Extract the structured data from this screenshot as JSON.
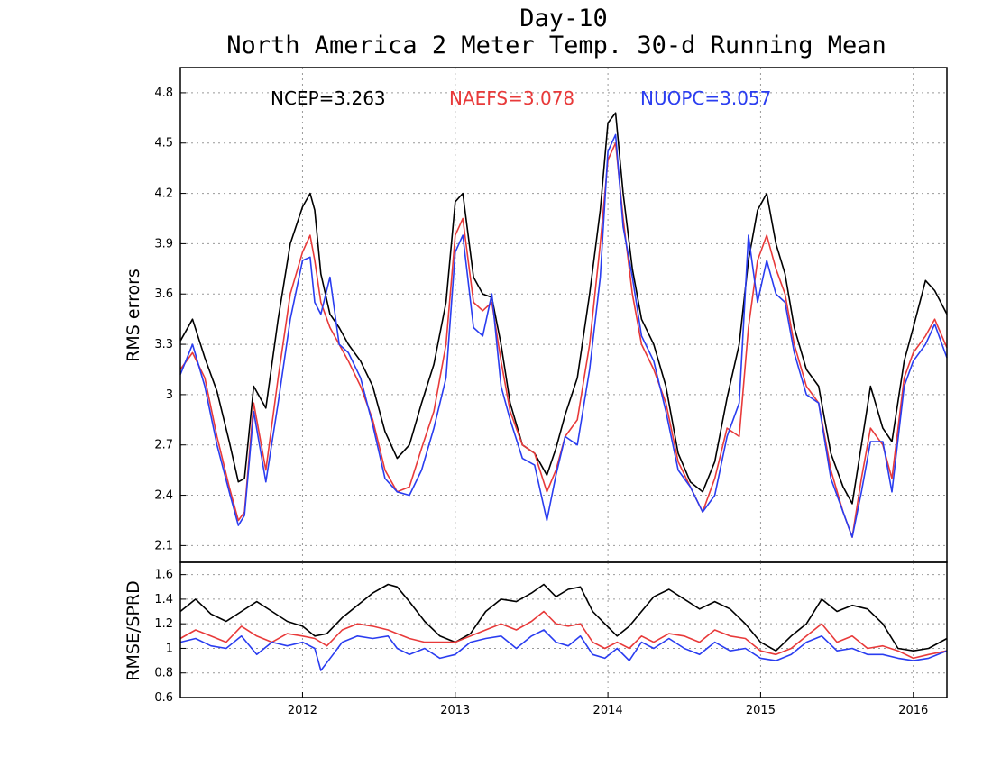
{
  "title": "Day-10",
  "subtitle": "North America 2 Meter Temp. 30-d Running Mean",
  "colors": {
    "NCEP": "#000000",
    "NAEFS": "#e83a3a",
    "NUOPC": "#2a3df0",
    "grid": "#999999"
  },
  "chart_data": [
    {
      "type": "line",
      "ylabel": "RMS errors",
      "ylim": [
        2.0,
        4.95
      ],
      "yticks": [
        "2.1",
        "2.4",
        "2.7",
        "3",
        "3.3",
        "3.6",
        "3.9",
        "4.2",
        "4.5",
        "4.8"
      ],
      "xlim": [
        2011.2,
        2016.22
      ],
      "xticks": [
        "2012",
        "2013",
        "2014",
        "2015",
        "2016"
      ],
      "grid": true,
      "legend": [
        {
          "name": "NCEP",
          "text": "NCEP=3.263"
        },
        {
          "name": "NAEFS",
          "text": "NAEFS=3.078"
        },
        {
          "name": "NUOPC",
          "text": "NUOPC=3.057"
        }
      ],
      "series": [
        {
          "name": "NCEP",
          "x": [
            2011.2,
            2011.28,
            2011.36,
            2011.44,
            2011.52,
            2011.58,
            2011.62,
            2011.68,
            2011.76,
            2011.84,
            2011.92,
            2012.0,
            2012.05,
            2012.08,
            2012.12,
            2012.18,
            2012.24,
            2012.3,
            2012.38,
            2012.46,
            2012.54,
            2012.62,
            2012.7,
            2012.78,
            2012.86,
            2012.94,
            2013.0,
            2013.05,
            2013.12,
            2013.18,
            2013.24,
            2013.3,
            2013.36,
            2013.44,
            2013.52,
            2013.6,
            2013.66,
            2013.72,
            2013.8,
            2013.88,
            2013.95,
            2014.0,
            2014.05,
            2014.1,
            2014.16,
            2014.22,
            2014.3,
            2014.38,
            2014.46,
            2014.54,
            2014.62,
            2014.7,
            2014.78,
            2014.86,
            2014.92,
            2014.98,
            2015.04,
            2015.1,
            2015.16,
            2015.22,
            2015.3,
            2015.38,
            2015.46,
            2015.54,
            2015.6,
            2015.66,
            2015.72,
            2015.8,
            2015.86,
            2015.94,
            2016.0,
            2016.08,
            2016.14,
            2016.22
          ],
          "values": [
            3.32,
            3.45,
            3.22,
            3.02,
            2.72,
            2.48,
            2.5,
            3.05,
            2.92,
            3.45,
            3.9,
            4.12,
            4.2,
            4.1,
            3.72,
            3.48,
            3.4,
            3.3,
            3.2,
            3.05,
            2.78,
            2.62,
            2.7,
            2.95,
            3.18,
            3.55,
            4.15,
            4.2,
            3.7,
            3.6,
            3.58,
            3.3,
            2.95,
            2.7,
            2.65,
            2.52,
            2.68,
            2.88,
            3.1,
            3.6,
            4.1,
            4.62,
            4.68,
            4.2,
            3.75,
            3.45,
            3.3,
            3.05,
            2.65,
            2.48,
            2.42,
            2.6,
            2.98,
            3.3,
            3.8,
            4.1,
            4.2,
            3.9,
            3.72,
            3.4,
            3.15,
            3.05,
            2.65,
            2.45,
            2.35,
            2.7,
            3.05,
            2.8,
            2.72,
            3.2,
            3.4,
            3.68,
            3.62,
            3.48
          ]
        },
        {
          "name": "NAEFS",
          "x": [
            2011.2,
            2011.28,
            2011.36,
            2011.44,
            2011.52,
            2011.58,
            2011.62,
            2011.68,
            2011.76,
            2011.84,
            2011.92,
            2012.0,
            2012.05,
            2012.08,
            2012.12,
            2012.18,
            2012.24,
            2012.3,
            2012.38,
            2012.46,
            2012.54,
            2012.62,
            2012.7,
            2012.78,
            2012.86,
            2012.94,
            2013.0,
            2013.05,
            2013.12,
            2013.18,
            2013.24,
            2013.3,
            2013.36,
            2013.44,
            2013.52,
            2013.6,
            2013.66,
            2013.72,
            2013.8,
            2013.88,
            2013.95,
            2014.0,
            2014.05,
            2014.1,
            2014.16,
            2014.22,
            2014.3,
            2014.38,
            2014.46,
            2014.54,
            2014.62,
            2014.7,
            2014.78,
            2014.86,
            2014.92,
            2014.98,
            2015.04,
            2015.1,
            2015.16,
            2015.22,
            2015.3,
            2015.38,
            2015.46,
            2015.54,
            2015.6,
            2015.66,
            2015.72,
            2015.8,
            2015.86,
            2015.94,
            2016.0,
            2016.08,
            2016.14,
            2016.22
          ],
          "values": [
            3.15,
            3.25,
            3.1,
            2.75,
            2.45,
            2.25,
            2.3,
            2.95,
            2.55,
            3.1,
            3.6,
            3.85,
            3.95,
            3.8,
            3.55,
            3.4,
            3.3,
            3.2,
            3.05,
            2.85,
            2.55,
            2.42,
            2.45,
            2.68,
            2.9,
            3.3,
            3.95,
            4.05,
            3.55,
            3.5,
            3.55,
            3.2,
            2.9,
            2.7,
            2.65,
            2.42,
            2.55,
            2.75,
            2.85,
            3.3,
            3.9,
            4.4,
            4.5,
            4.05,
            3.6,
            3.3,
            3.15,
            2.95,
            2.6,
            2.45,
            2.3,
            2.5,
            2.8,
            2.75,
            3.4,
            3.8,
            3.95,
            3.75,
            3.6,
            3.3,
            3.05,
            2.95,
            2.55,
            2.3,
            2.15,
            2.5,
            2.8,
            2.7,
            2.5,
            3.1,
            3.25,
            3.35,
            3.45,
            3.28
          ]
        },
        {
          "name": "NUOPC",
          "x": [
            2011.2,
            2011.28,
            2011.36,
            2011.44,
            2011.52,
            2011.58,
            2011.62,
            2011.68,
            2011.76,
            2011.84,
            2011.92,
            2012.0,
            2012.05,
            2012.08,
            2012.12,
            2012.18,
            2012.24,
            2012.3,
            2012.38,
            2012.46,
            2012.54,
            2012.62,
            2012.7,
            2012.78,
            2012.86,
            2012.94,
            2013.0,
            2013.05,
            2013.12,
            2013.18,
            2013.24,
            2013.3,
            2013.36,
            2013.44,
            2013.52,
            2013.6,
            2013.66,
            2013.72,
            2013.8,
            2013.88,
            2013.95,
            2014.0,
            2014.05,
            2014.1,
            2014.16,
            2014.22,
            2014.3,
            2014.38,
            2014.46,
            2014.54,
            2014.62,
            2014.7,
            2014.78,
            2014.86,
            2014.92,
            2014.98,
            2015.04,
            2015.1,
            2015.16,
            2015.22,
            2015.3,
            2015.38,
            2015.46,
            2015.54,
            2015.6,
            2015.66,
            2015.72,
            2015.8,
            2015.86,
            2015.94,
            2016.0,
            2016.08,
            2016.14,
            2016.22
          ],
          "values": [
            3.12,
            3.3,
            3.05,
            2.7,
            2.42,
            2.22,
            2.28,
            2.9,
            2.48,
            2.95,
            3.45,
            3.8,
            3.82,
            3.55,
            3.48,
            3.7,
            3.3,
            3.25,
            3.1,
            2.82,
            2.5,
            2.42,
            2.4,
            2.55,
            2.8,
            3.1,
            3.85,
            3.95,
            3.4,
            3.35,
            3.6,
            3.05,
            2.85,
            2.62,
            2.58,
            2.25,
            2.52,
            2.75,
            2.7,
            3.15,
            3.7,
            4.45,
            4.55,
            4.0,
            3.7,
            3.35,
            3.2,
            2.9,
            2.55,
            2.45,
            2.3,
            2.4,
            2.75,
            2.95,
            3.95,
            3.55,
            3.8,
            3.6,
            3.55,
            3.25,
            3.0,
            2.95,
            2.5,
            2.3,
            2.15,
            2.42,
            2.72,
            2.72,
            2.42,
            3.05,
            3.2,
            3.3,
            3.42,
            3.22
          ]
        }
      ]
    },
    {
      "type": "line",
      "ylabel": "RMSE/SPRD",
      "ylim": [
        0.6,
        1.7
      ],
      "yticks": [
        "0.6",
        "0.8",
        "1",
        "1.2",
        "1.4",
        "1.6"
      ],
      "xlim": [
        2011.2,
        2016.22
      ],
      "xticks": [
        "2012",
        "2013",
        "2014",
        "2015",
        "2016"
      ],
      "grid": true,
      "series": [
        {
          "name": "NCEP",
          "x": [
            2011.2,
            2011.3,
            2011.4,
            2011.5,
            2011.6,
            2011.7,
            2011.8,
            2011.9,
            2012.0,
            2012.08,
            2012.16,
            2012.26,
            2012.36,
            2012.46,
            2012.56,
            2012.62,
            2012.7,
            2012.8,
            2012.9,
            2013.0,
            2013.1,
            2013.2,
            2013.3,
            2013.4,
            2013.5,
            2013.58,
            2013.66,
            2013.74,
            2013.82,
            2013.9,
            2013.98,
            2014.06,
            2014.14,
            2014.22,
            2014.3,
            2014.4,
            2014.5,
            2014.6,
            2014.7,
            2014.8,
            2014.9,
            2015.0,
            2015.1,
            2015.2,
            2015.3,
            2015.4,
            2015.5,
            2015.6,
            2015.7,
            2015.8,
            2015.9,
            2016.0,
            2016.1,
            2016.22
          ],
          "values": [
            1.3,
            1.4,
            1.28,
            1.22,
            1.3,
            1.38,
            1.3,
            1.22,
            1.18,
            1.1,
            1.12,
            1.25,
            1.35,
            1.45,
            1.52,
            1.5,
            1.38,
            1.22,
            1.1,
            1.05,
            1.12,
            1.3,
            1.4,
            1.38,
            1.45,
            1.52,
            1.42,
            1.48,
            1.5,
            1.3,
            1.2,
            1.1,
            1.18,
            1.3,
            1.42,
            1.48,
            1.4,
            1.32,
            1.38,
            1.32,
            1.2,
            1.05,
            0.98,
            1.1,
            1.2,
            1.4,
            1.3,
            1.35,
            1.32,
            1.2,
            1.0,
            0.98,
            1.0,
            1.08
          ]
        },
        {
          "name": "NAEFS",
          "x": [
            2011.2,
            2011.3,
            2011.4,
            2011.5,
            2011.6,
            2011.7,
            2011.8,
            2011.9,
            2012.0,
            2012.08,
            2012.16,
            2012.26,
            2012.36,
            2012.46,
            2012.56,
            2012.62,
            2012.7,
            2012.8,
            2012.9,
            2013.0,
            2013.1,
            2013.2,
            2013.3,
            2013.4,
            2013.5,
            2013.58,
            2013.66,
            2013.74,
            2013.82,
            2013.9,
            2013.98,
            2014.06,
            2014.14,
            2014.22,
            2014.3,
            2014.4,
            2014.5,
            2014.6,
            2014.7,
            2014.8,
            2014.9,
            2015.0,
            2015.1,
            2015.2,
            2015.3,
            2015.4,
            2015.5,
            2015.6,
            2015.7,
            2015.8,
            2015.9,
            2016.0,
            2016.1,
            2016.22
          ],
          "values": [
            1.08,
            1.15,
            1.1,
            1.05,
            1.18,
            1.1,
            1.05,
            1.12,
            1.1,
            1.08,
            1.02,
            1.15,
            1.2,
            1.18,
            1.15,
            1.12,
            1.08,
            1.05,
            1.05,
            1.05,
            1.1,
            1.15,
            1.2,
            1.15,
            1.22,
            1.3,
            1.2,
            1.18,
            1.2,
            1.05,
            1.0,
            1.05,
            1.0,
            1.1,
            1.05,
            1.12,
            1.1,
            1.05,
            1.15,
            1.1,
            1.08,
            0.98,
            0.95,
            1.0,
            1.1,
            1.2,
            1.05,
            1.1,
            1.0,
            1.02,
            0.98,
            0.92,
            0.95,
            0.98
          ]
        },
        {
          "name": "NUOPC",
          "x": [
            2011.2,
            2011.3,
            2011.4,
            2011.5,
            2011.6,
            2011.7,
            2011.8,
            2011.9,
            2012.0,
            2012.08,
            2012.12,
            2012.2,
            2012.26,
            2012.36,
            2012.46,
            2012.56,
            2012.62,
            2012.7,
            2012.8,
            2012.9,
            2013.0,
            2013.1,
            2013.2,
            2013.3,
            2013.4,
            2013.5,
            2013.58,
            2013.66,
            2013.74,
            2013.82,
            2013.9,
            2013.98,
            2014.06,
            2014.14,
            2014.22,
            2014.3,
            2014.4,
            2014.5,
            2014.6,
            2014.7,
            2014.8,
            2014.9,
            2015.0,
            2015.1,
            2015.2,
            2015.3,
            2015.4,
            2015.5,
            2015.6,
            2015.7,
            2015.8,
            2015.9,
            2016.0,
            2016.1,
            2016.22
          ],
          "values": [
            1.05,
            1.08,
            1.02,
            1.0,
            1.1,
            0.95,
            1.05,
            1.02,
            1.05,
            1.0,
            0.82,
            0.95,
            1.05,
            1.1,
            1.08,
            1.1,
            1.0,
            0.95,
            1.0,
            0.92,
            0.95,
            1.05,
            1.08,
            1.1,
            1.0,
            1.1,
            1.15,
            1.05,
            1.02,
            1.1,
            0.95,
            0.92,
            1.0,
            0.9,
            1.05,
            1.0,
            1.08,
            1.0,
            0.95,
            1.05,
            0.98,
            1.0,
            0.92,
            0.9,
            0.95,
            1.05,
            1.1,
            0.98,
            1.0,
            0.95,
            0.95,
            0.92,
            0.9,
            0.92,
            0.98
          ]
        }
      ]
    }
  ]
}
